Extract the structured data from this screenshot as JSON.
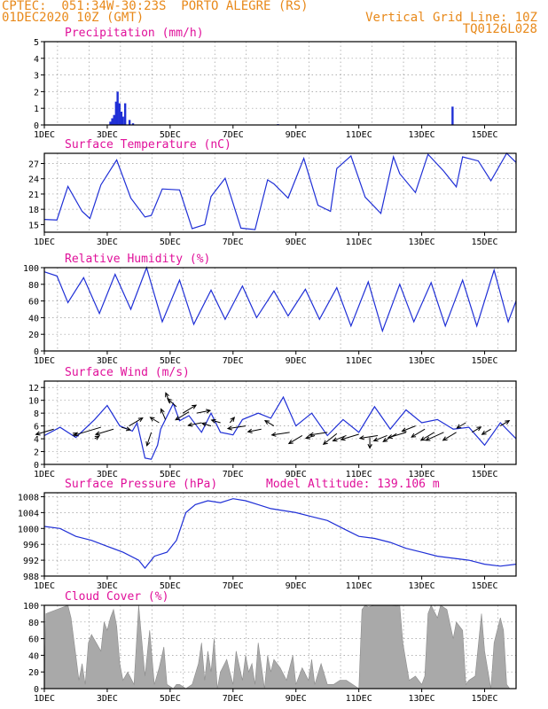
{
  "header": {
    "line1_left": "CPTEC:  051:34W-30:23S  PORTO ALEGRE (RS)",
    "line2_left": "01DEC2020 10Z (GMT)",
    "line2_right": "Vertical Grid Line: 10Z",
    "line3_right": "TQ0126L028"
  },
  "x_ticks": [
    "1DEC",
    "3DEC",
    "5DEC",
    "7DEC",
    "9DEC",
    "11DEC",
    "13DEC",
    "15DEC"
  ],
  "colors": {
    "header": "#e8891a",
    "title": "#e0109a",
    "line": "#1f2fd6",
    "bar": "#1f2fd6",
    "cloud": "#a9a9a9"
  },
  "chart_data": [
    {
      "id": "precip",
      "type": "bar",
      "title": "Precipitation (mm/h)",
      "xlim": [
        0,
        15
      ],
      "ylim": [
        0,
        5
      ],
      "y_ticks": [
        "0",
        "1",
        "2",
        "3",
        "4",
        "5"
      ],
      "x_unit": "days since 1DEC 00Z",
      "series": [
        {
          "x": [
            2.1,
            2.16,
            2.22,
            2.28,
            2.33,
            2.39,
            2.45,
            2.5,
            2.57,
            2.71,
            2.82,
            7.43,
            12.98
          ],
          "values": [
            0.2,
            0.4,
            0.6,
            1.4,
            2.0,
            1.3,
            0.8,
            0.5,
            1.3,
            0.3,
            0.1,
            0.05,
            1.1
          ]
        }
      ]
    },
    {
      "id": "temp",
      "type": "line",
      "title": "Surface Temperature (nC)",
      "xlim": [
        0,
        15
      ],
      "ylim": [
        13.5,
        29
      ],
      "y_ticks": [
        "15",
        "18",
        "21",
        "24",
        "27"
      ],
      "series": [
        {
          "x": [
            0,
            0.4,
            0.75,
            1.2,
            1.45,
            1.8,
            2.3,
            2.75,
            3.2,
            3.4,
            3.75,
            4.3,
            4.7,
            5.1,
            5.3,
            5.75,
            6.25,
            6.7,
            7.1,
            7.3,
            7.75,
            8.25,
            8.7,
            9.1,
            9.3,
            9.75,
            10.2,
            10.7,
            11.1,
            11.3,
            11.8,
            12.2,
            12.7,
            13.1,
            13.3,
            13.8,
            14.2,
            14.7,
            15.0
          ],
          "values": [
            16,
            15.9,
            22.5,
            17.6,
            16.2,
            22.8,
            27.7,
            20.2,
            16.5,
            16.8,
            22.0,
            21.8,
            14.2,
            15.0,
            20.5,
            24.1,
            14.3,
            14.0,
            23.8,
            23.0,
            20.2,
            28.0,
            18.8,
            17.6,
            26.0,
            28.5,
            20.4,
            17.2,
            28.3,
            25.0,
            21.3,
            28.8,
            25.5,
            22.4,
            28.3,
            27.5,
            23.6,
            29.0,
            27.2
          ]
        }
      ]
    },
    {
      "id": "rh",
      "type": "line",
      "title": "Relative Humidity (%)",
      "xlim": [
        0,
        15
      ],
      "ylim": [
        0,
        100
      ],
      "y_ticks": [
        "0",
        "20",
        "40",
        "60",
        "80",
        "100"
      ],
      "series": [
        {
          "x": [
            0,
            0.4,
            0.75,
            1.25,
            1.75,
            2.25,
            2.75,
            3.25,
            3.75,
            4.3,
            4.75,
            5.3,
            5.75,
            6.3,
            6.75,
            7.3,
            7.75,
            8.3,
            8.75,
            9.3,
            9.75,
            10.3,
            10.75,
            11.3,
            11.75,
            12.3,
            12.75,
            13.3,
            13.75,
            14.3,
            14.75,
            15.0
          ],
          "values": [
            95,
            90,
            58,
            88,
            45,
            92,
            50,
            100,
            35,
            85,
            32,
            73,
            38,
            78,
            40,
            72,
            42,
            74,
            38,
            76,
            30,
            83,
            24,
            80,
            35,
            82,
            30,
            85,
            30,
            97,
            35,
            60
          ]
        }
      ]
    },
    {
      "id": "wind",
      "type": "line",
      "title": "Surface Wind (m/s)",
      "xlim": [
        0,
        15
      ],
      "ylim": [
        0,
        13
      ],
      "y_ticks": [
        "0",
        "2",
        "4",
        "6",
        "8",
        "10",
        "12"
      ],
      "series": [
        {
          "x": [
            0,
            0.5,
            1.0,
            1.6,
            2.0,
            2.4,
            2.8,
            2.95,
            3.2,
            3.4,
            3.6,
            3.7,
            4.1,
            4.3,
            4.6,
            5.0,
            5.3,
            5.6,
            6.0,
            6.3,
            6.8,
            7.2,
            7.6,
            8.0,
            8.5,
            9.0,
            9.5,
            10.0,
            10.5,
            11.0,
            11.5,
            12.0,
            12.5,
            13.0,
            13.5,
            14.0,
            14.5,
            15.0
          ],
          "values": [
            4.5,
            5.8,
            4.2,
            7.0,
            9.2,
            6.0,
            5.2,
            6.5,
            1.0,
            0.8,
            3.0,
            5.5,
            9.5,
            6.8,
            7.6,
            5.0,
            8.0,
            5.0,
            4.6,
            7.0,
            8.0,
            7.2,
            10.5,
            6.0,
            8.0,
            4.5,
            7.0,
            5.0,
            9.0,
            5.5,
            8.5,
            6.5,
            7.0,
            5.5,
            5.8,
            3.0,
            6.5,
            4.0
          ]
        }
      ]
    },
    {
      "id": "pressure",
      "type": "line",
      "title": "Surface Pressure (hPa)",
      "subtitle": "Model Altitude: 139.106 m",
      "xlim": [
        0,
        15
      ],
      "ylim": [
        988,
        1009
      ],
      "y_ticks": [
        "988",
        "992",
        "996",
        "1000",
        "1004",
        "1008"
      ],
      "series": [
        {
          "x": [
            0,
            0.5,
            1.0,
            1.5,
            2.0,
            2.5,
            3.0,
            3.2,
            3.5,
            3.9,
            4.2,
            4.5,
            4.8,
            5.2,
            5.6,
            6.0,
            6.4,
            6.8,
            7.2,
            7.6,
            8.0,
            8.5,
            9.0,
            9.5,
            10.0,
            10.5,
            11.0,
            11.5,
            12.0,
            12.5,
            13.0,
            13.5,
            14.0,
            14.5,
            15.0
          ],
          "values": [
            1000.5,
            1000.0,
            998.0,
            997.0,
            995.5,
            994.0,
            992.0,
            990.0,
            993.0,
            994.0,
            997.0,
            1004.0,
            1006.0,
            1007.0,
            1006.5,
            1007.5,
            1007.0,
            1006.0,
            1005.0,
            1004.5,
            1004.0,
            1003.0,
            1002.0,
            1000.0,
            998.0,
            997.5,
            996.5,
            995.0,
            994.0,
            993.0,
            992.5,
            992.0,
            991.0,
            990.5,
            991.0
          ]
        }
      ]
    },
    {
      "id": "cloud",
      "type": "area",
      "title": "Cloud Cover (%)",
      "xlim": [
        0,
        15
      ],
      "ylim": [
        0,
        100
      ],
      "y_ticks": [
        "0",
        "20",
        "40",
        "60",
        "80",
        "100"
      ],
      "series": [
        {
          "x": [
            0.0,
            0.05,
            0.75,
            0.85,
            1.0,
            1.1,
            1.2,
            1.3,
            1.4,
            1.5,
            1.65,
            1.8,
            1.9,
            2.0,
            2.1,
            2.2,
            2.3,
            2.4,
            2.5,
            2.65,
            2.85,
            3.0,
            3.2,
            3.35,
            3.5,
            3.65,
            3.8,
            3.9,
            4.1,
            4.2,
            4.3,
            4.5,
            4.7,
            4.9,
            5.0,
            5.1,
            5.2,
            5.3,
            5.4,
            5.5,
            5.6,
            5.8,
            6.0,
            6.1,
            6.3,
            6.4,
            6.5,
            6.6,
            6.7,
            6.8,
            7.0,
            7.1,
            7.2,
            7.3,
            7.5,
            7.7,
            7.9,
            8.0,
            8.2,
            8.4,
            8.5,
            8.6,
            8.8,
            9.0,
            9.2,
            9.4,
            9.6,
            9.8,
            10.0,
            10.1,
            10.2,
            10.3,
            10.5,
            10.8,
            11.0,
            11.2,
            11.3,
            11.4,
            11.6,
            11.8,
            12.0,
            12.1,
            12.2,
            12.3,
            12.5,
            12.6,
            12.8,
            13.0,
            13.1,
            13.3,
            13.4,
            13.5,
            13.7,
            13.9,
            14.0,
            14.2,
            14.3,
            14.5,
            14.6,
            14.7,
            14.8,
            15.0
          ],
          "values": [
            0,
            90,
            100,
            85,
            40,
            10,
            30,
            5,
            55,
            65,
            55,
            45,
            80,
            70,
            85,
            95,
            75,
            30,
            10,
            20,
            5,
            100,
            15,
            70,
            5,
            25,
            50,
            5,
            0,
            5,
            5,
            0,
            5,
            30,
            55,
            10,
            45,
            20,
            60,
            0,
            20,
            35,
            5,
            45,
            10,
            40,
            20,
            30,
            5,
            55,
            0,
            40,
            20,
            35,
            25,
            10,
            40,
            5,
            25,
            10,
            35,
            5,
            30,
            5,
            5,
            10,
            10,
            5,
            0,
            95,
            100,
            98,
            100,
            100,
            100,
            99,
            100,
            55,
            10,
            15,
            5,
            15,
            90,
            100,
            85,
            100,
            95,
            60,
            80,
            70,
            5,
            10,
            15,
            90,
            45,
            0,
            55,
            85,
            70,
            5,
            0,
            0
          ]
        }
      ]
    }
  ],
  "wind_vectors": {
    "x": [
      0.3,
      0.9,
      1.6,
      1.8,
      2.2,
      2.45,
      2.7,
      3.4,
      3.65,
      3.85,
      4.0,
      4.2,
      4.4,
      4.6,
      4.85,
      5.0,
      5.3,
      5.6,
      5.9,
      6.4,
      6.9,
      7.3,
      7.8,
      8.2,
      8.6,
      9.0,
      9.3,
      9.6,
      10.0,
      10.35,
      10.6,
      10.9,
      11.2,
      11.5,
      11.8,
      12.1,
      12.4,
      12.7,
      13.1,
      13.4,
      13.6,
      14.2,
      14.5
    ],
    "y": [
      5.5,
      4.5,
      4.0,
      5.8,
      5.5,
      5.8,
      6.0,
      5.0,
      6.5,
      7.0,
      9.5,
      9.0,
      8.0,
      8.2,
      8.0,
      6.5,
      6.0,
      6.5,
      6.5,
      6.0,
      5.5,
      6.0,
      5.0,
      4.5,
      4.5,
      5.0,
      4.8,
      4.5,
      4.7,
      4.2,
      4.5,
      4.5,
      4.8,
      5.0,
      6.0,
      5.5,
      5.0,
      5.0,
      5.0,
      6.5,
      5.0,
      5.5,
      6.0
    ],
    "u": [
      -4,
      1,
      1,
      -6,
      -4,
      2,
      3,
      -1,
      -2,
      -1,
      -1,
      -2,
      3,
      -3,
      3,
      -3,
      -2,
      -2,
      1,
      -4,
      -3,
      -2,
      -4,
      -3,
      -2,
      -4,
      -3,
      -3,
      -4,
      0,
      -4,
      -3,
      -3,
      -4,
      -3,
      -3,
      -3,
      -4,
      -3,
      -2,
      2,
      -2,
      2
    ],
    "v": [
      -2,
      1,
      1,
      -3,
      -2,
      -1,
      3,
      -5,
      2,
      4,
      4,
      3,
      3,
      -3,
      1,
      -1,
      1,
      1,
      2,
      -1,
      -1,
      2,
      -1,
      -3,
      -1,
      -1,
      -4,
      -2,
      -2,
      -4,
      -1,
      -2,
      -3,
      -2,
      -2,
      -3,
      -3,
      -3,
      -3,
      -2,
      2,
      -2,
      2
    ]
  }
}
